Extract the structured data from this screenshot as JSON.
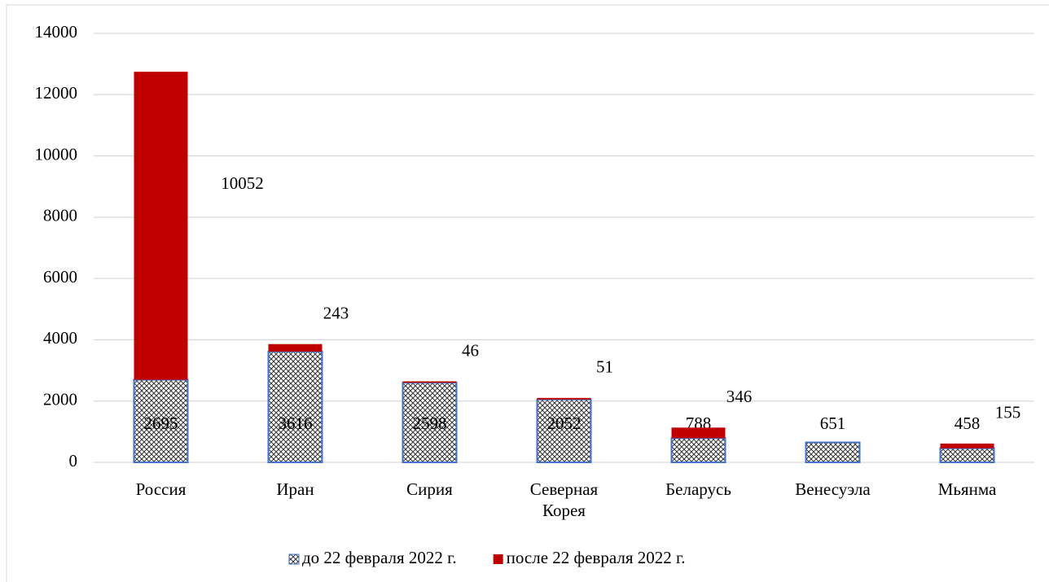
{
  "chart_data": {
    "type": "bar",
    "stacked": true,
    "categories": [
      "Россия",
      "Иран",
      "Сирия",
      "Северная Корея",
      "Беларусь",
      "Венесуэла",
      "Мьянма"
    ],
    "series": [
      {
        "name": "до 22 февраля 2022 г.",
        "color": "#4472c4",
        "pattern": "crosshatch",
        "values": [
          2695,
          3616,
          2598,
          2052,
          788,
          651,
          458
        ]
      },
      {
        "name": "после 22 февраля 2022 г.",
        "color": "#c00000",
        "values": [
          10052,
          243,
          46,
          51,
          346,
          null,
          155
        ]
      }
    ],
    "ylim": [
      0,
      14000
    ],
    "yticks": [
      0,
      2000,
      4000,
      6000,
      8000,
      10000,
      12000,
      14000
    ],
    "grid": true,
    "legend": "bottom"
  }
}
